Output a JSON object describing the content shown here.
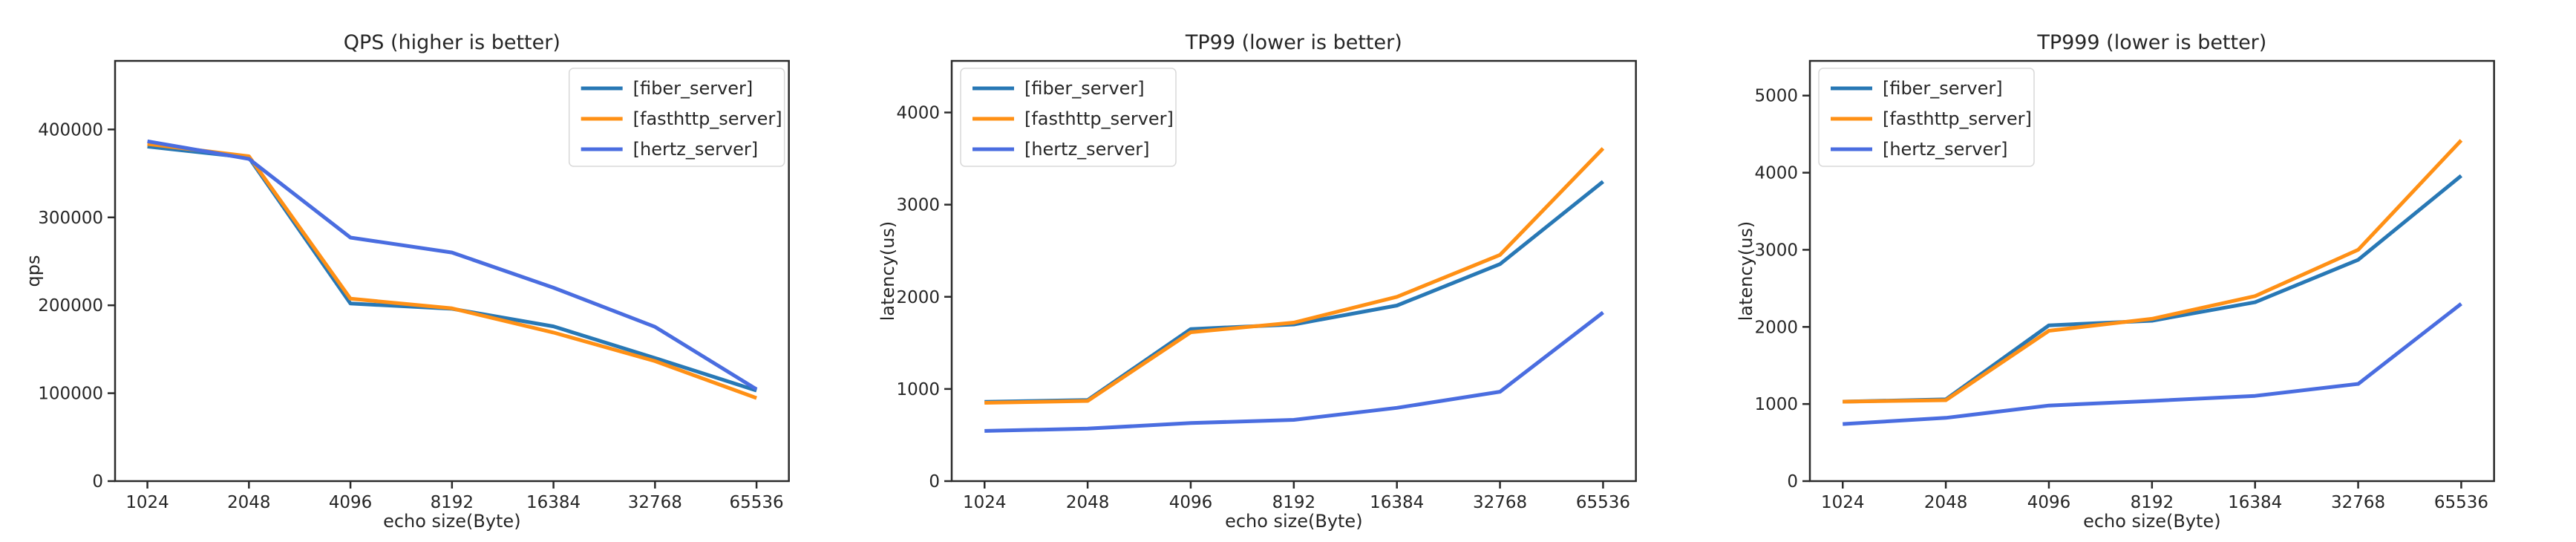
{
  "figure": {
    "background_color": "#ffffff",
    "text_color": "#262626",
    "spine_color": "#2b2b2b",
    "legend_border_color": "#d8d8d8"
  },
  "chart_data": [
    {
      "type": "line",
      "title": "QPS (higher is better)",
      "xlabel": "echo size(Byte)",
      "ylabel": "qps",
      "categories": [
        "1024",
        "2048",
        "4096",
        "8192",
        "16384",
        "32768",
        "65536"
      ],
      "ylim": [
        0,
        478000
      ],
      "yticks": [
        0,
        100000,
        200000,
        300000,
        400000
      ],
      "grid": false,
      "legend_position": "top-right",
      "series": [
        {
          "name": "[fiber_server]",
          "color": "#2878b5",
          "values": [
            380500,
            368000,
            202000,
            196000,
            176000,
            140000,
            103000
          ]
        },
        {
          "name": "[fasthttp_server]",
          "color": "#ff9015",
          "values": [
            383500,
            369500,
            207500,
            196500,
            169000,
            136500,
            94500
          ]
        },
        {
          "name": "[hertz_server]",
          "color": "#4a6de0",
          "values": [
            386500,
            366500,
            277000,
            260000,
            220000,
            175500,
            104500
          ]
        }
      ]
    },
    {
      "type": "line",
      "title": "TP99 (lower is better)",
      "xlabel": "echo size(Byte)",
      "ylabel": "latency(us)",
      "categories": [
        "1024",
        "2048",
        "4096",
        "8192",
        "16384",
        "32768",
        "65536"
      ],
      "ylim": [
        0,
        4560
      ],
      "yticks": [
        0,
        1000,
        2000,
        3000,
        4000
      ],
      "grid": false,
      "legend_position": "top-left",
      "series": [
        {
          "name": "[fiber_server]",
          "color": "#2878b5",
          "values": [
            860,
            880,
            1650,
            1700,
            1905,
            2355,
            3250
          ]
        },
        {
          "name": "[fasthttp_server]",
          "color": "#ff9015",
          "values": [
            850,
            870,
            1615,
            1720,
            2000,
            2455,
            3610
          ]
        },
        {
          "name": "[hertz_server]",
          "color": "#4a6de0",
          "values": [
            545,
            570,
            630,
            665,
            795,
            970,
            1830
          ]
        }
      ]
    },
    {
      "type": "line",
      "title": "TP999 (lower is better)",
      "xlabel": "echo size(Byte)",
      "ylabel": "latency(us)",
      "categories": [
        "1024",
        "2048",
        "4096",
        "8192",
        "16384",
        "32768",
        "65536"
      ],
      "ylim": [
        0,
        5450
      ],
      "yticks": [
        0,
        1000,
        2000,
        3000,
        4000,
        5000
      ],
      "grid": false,
      "legend_position": "top-left",
      "series": [
        {
          "name": "[fiber_server]",
          "color": "#2878b5",
          "values": [
            1030,
            1060,
            2020,
            2080,
            2320,
            2870,
            3960
          ]
        },
        {
          "name": "[fasthttp_server]",
          "color": "#ff9015",
          "values": [
            1030,
            1050,
            1950,
            2105,
            2400,
            3000,
            4420
          ]
        },
        {
          "name": "[hertz_server]",
          "color": "#4a6de0",
          "values": [
            740,
            820,
            980,
            1040,
            1105,
            1260,
            2300
          ]
        }
      ]
    }
  ]
}
